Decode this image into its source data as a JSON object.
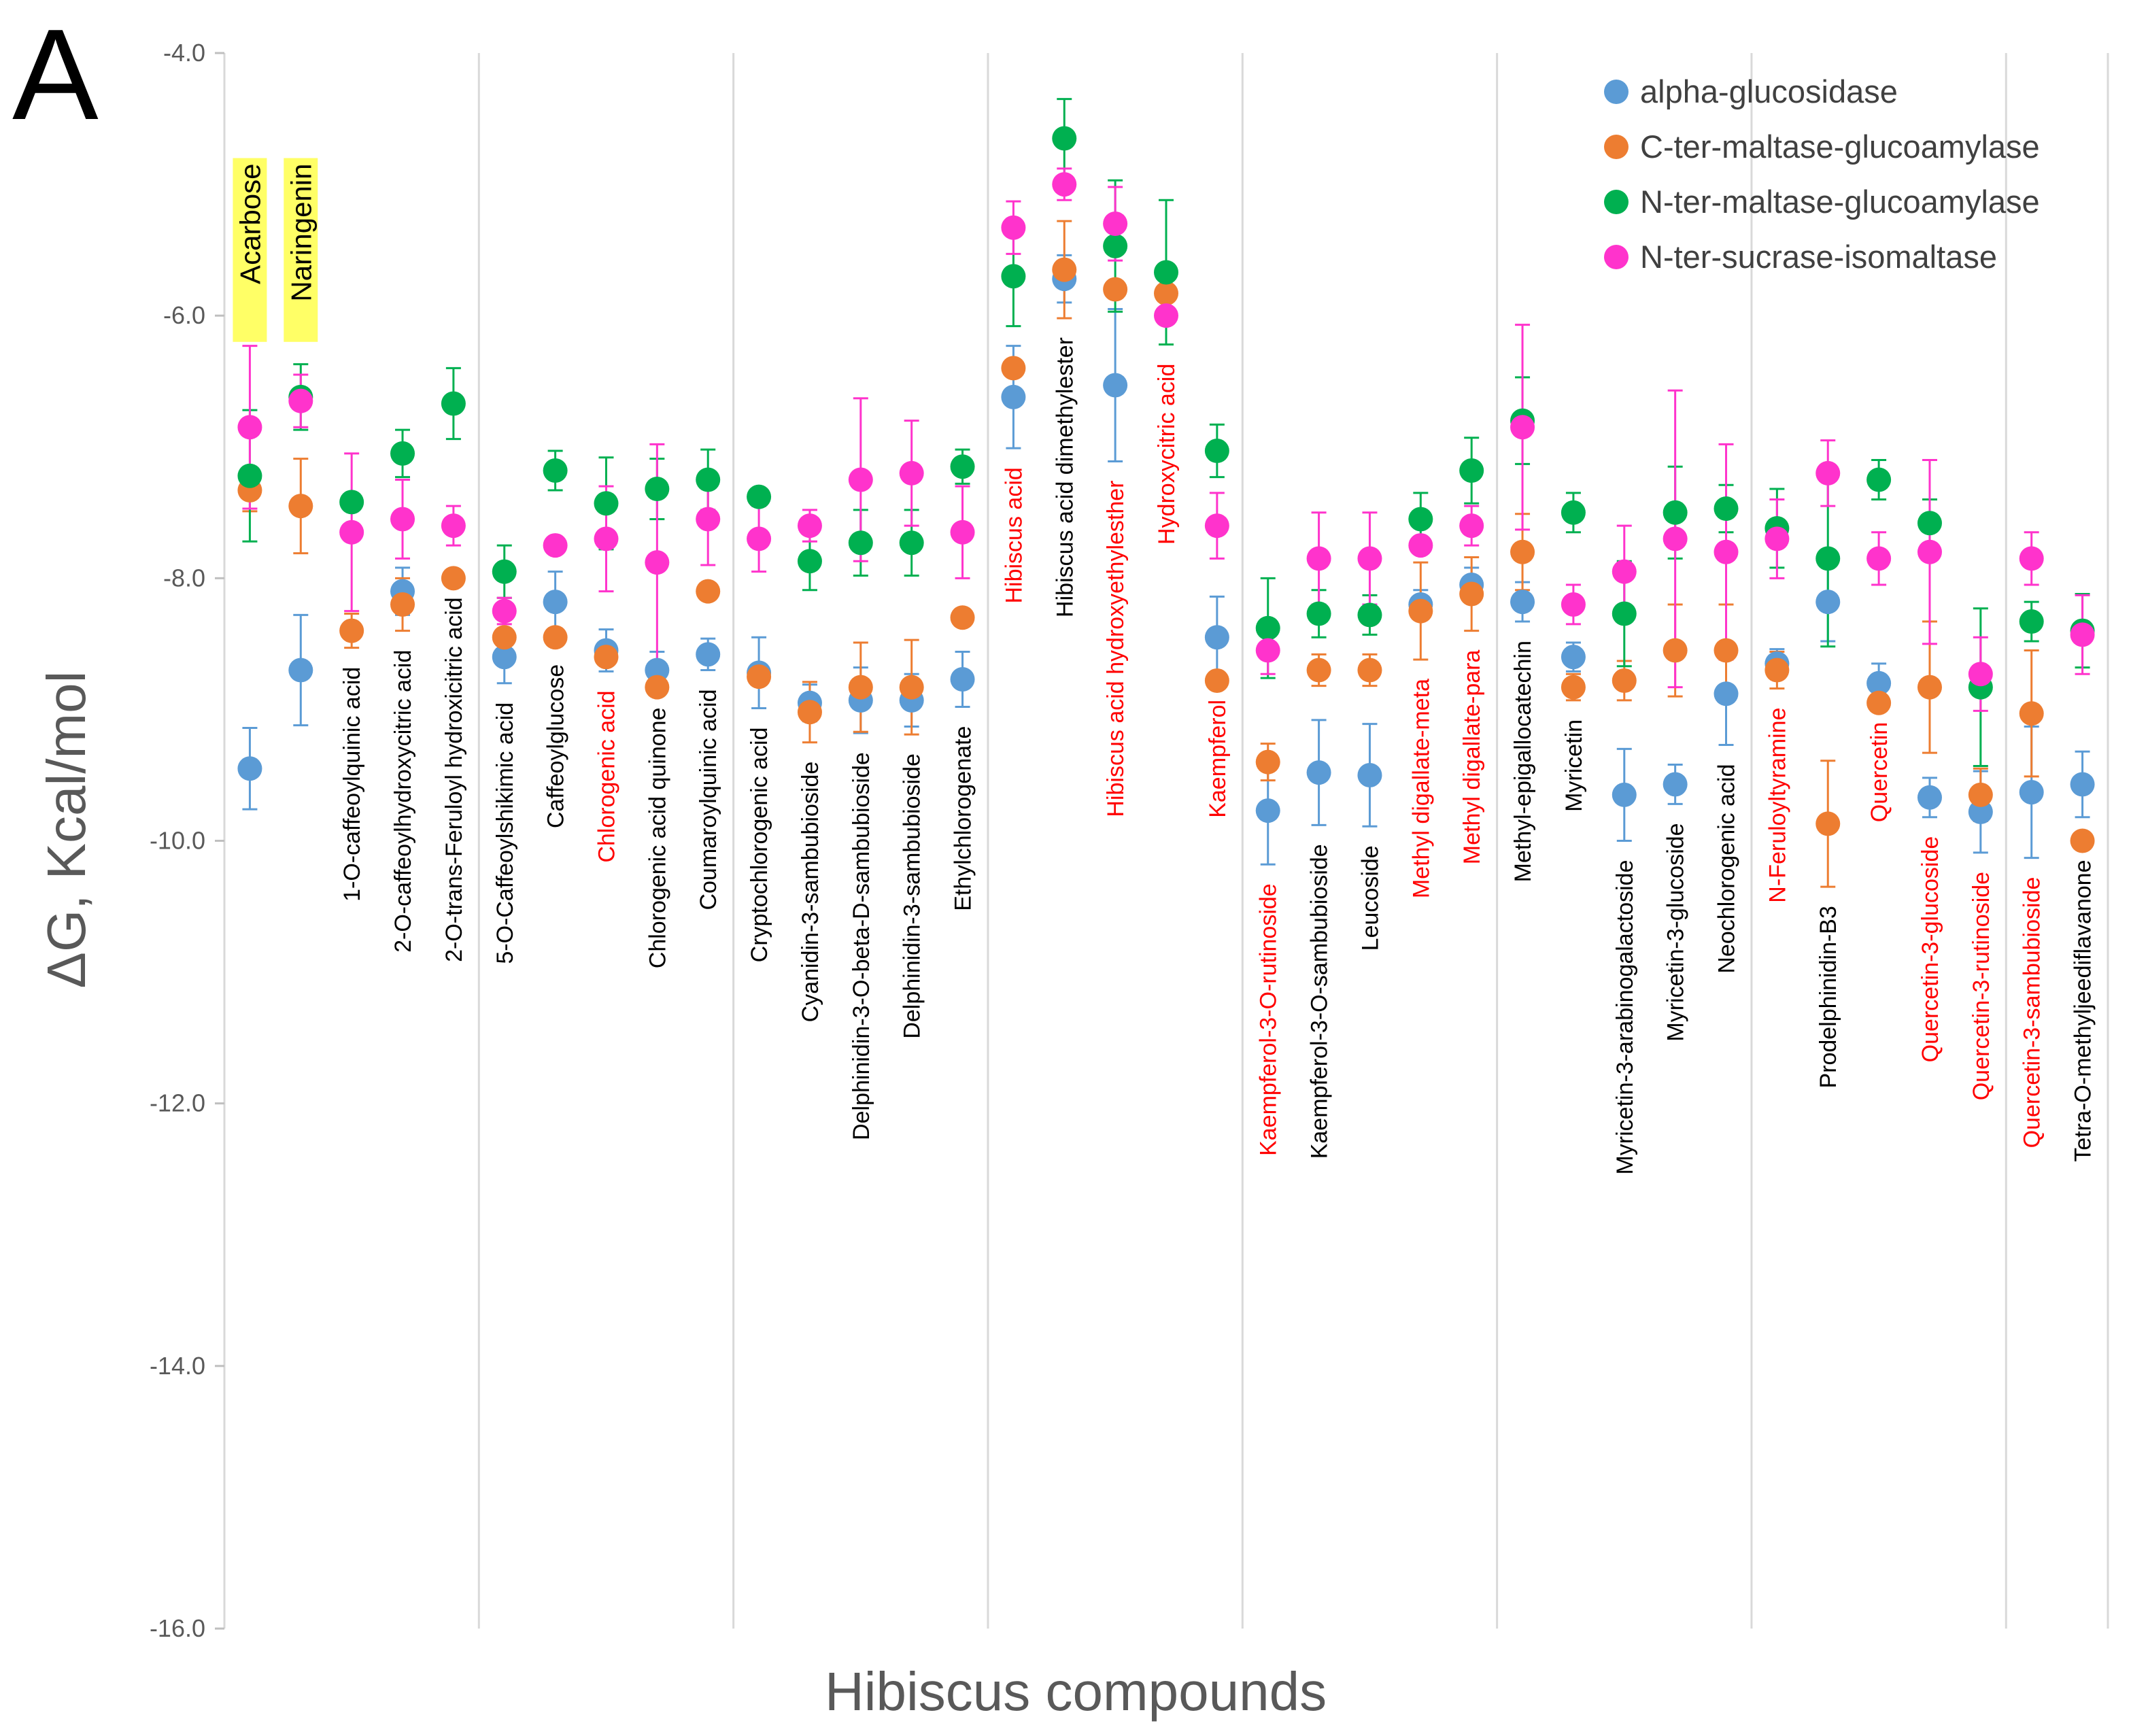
{
  "panel_label": "A",
  "chart_data": {
    "type": "scatter",
    "title": "",
    "xlabel": "Hibiscus compounds",
    "ylabel": "ΔG, Kcal/mol",
    "ylim": [
      -16,
      -4
    ],
    "yticks": [
      -4,
      -6,
      -8,
      -10,
      -12,
      -14,
      -16
    ],
    "ytick_labels": [
      "-4.0",
      "-6.0",
      "-8.0",
      "-10.0",
      "-12.0",
      "-14.0",
      "-16.0"
    ],
    "grid": "vertical lines every 5 categories",
    "legend_position": "top-right",
    "reference_labels": [
      "Acarbose",
      "Naringenin"
    ],
    "categories": [
      "Acarbose",
      "Naringenin",
      "1-O-caffeoylquinic acid",
      "2-O-caffeoylhydroxycitric acid",
      "2-O-trans-Feruloyl hydroxicitric acid",
      "5-O-Caffeoylshikimic acid",
      "Caffeoylglucose",
      "Chlorogenic acid",
      "Chlorogenic acid quinone",
      "Coumaroylquinic acid",
      "Cryptochlorogenic acid",
      "Cyanidin-3-sambubioside",
      "Delphinidin-3-O-beta-D-sambubioside",
      "Delphinidin-3-sambubioside",
      "Ethylchlorogenate",
      "Hibiscus acid",
      "Hibiscus acid dimethylester",
      "Hibiscus acid hydroxyethylesther",
      "Hydroxycitric acid",
      "Kaempferol",
      "Kaempferol-3-O-rutinoside",
      "Kaempferol-3-O-sambubioside",
      "Leucoside",
      "Methyl digallate-meta",
      "Methyl digallate-para",
      "Methyl-epigallocatechin",
      "Myricetin",
      "Myricetin-3-arabinogalactoside",
      "Myricetin-3-glucoside",
      "Neochlorogenic acid",
      "N-Feruloyltyramine",
      "Prodelphinidin-B3",
      "Quercetin",
      "Quercetin-3-glucoside",
      "Quercetin-3-rutinoside",
      "Quercetin-3-sambubioside",
      "Tetra-O-methyljeediflavanone"
    ],
    "label_colors": [
      "#000000",
      "#000000",
      "#000000",
      "#000000",
      "#000000",
      "#000000",
      "#000000",
      "#ff0000",
      "#000000",
      "#000000",
      "#000000",
      "#000000",
      "#000000",
      "#000000",
      "#000000",
      "#ff0000",
      "#000000",
      "#ff0000",
      "#ff0000",
      "#ff0000",
      "#ff0000",
      "#000000",
      "#000000",
      "#ff0000",
      "#ff0000",
      "#000000",
      "#000000",
      "#000000",
      "#000000",
      "#000000",
      "#ff0000",
      "#000000",
      "#ff0000",
      "#ff0000",
      "#ff0000",
      "#ff0000",
      "#000000"
    ],
    "series": [
      {
        "name": "alpha-glucosidase",
        "color": "#5b9bd5",
        "values": [
          -9.45,
          -8.7,
          null,
          -8.1,
          null,
          -8.6,
          -8.18,
          -8.55,
          -8.7,
          -8.58,
          -8.72,
          -8.95,
          -8.93,
          -8.93,
          -8.77,
          -6.62,
          -5.72,
          -6.53,
          null,
          -8.45,
          -9.77,
          -9.48,
          -9.5,
          -8.2,
          -8.05,
          -8.18,
          -8.6,
          -9.65,
          -9.57,
          -8.88,
          -8.65,
          -8.18,
          -8.8,
          -9.67,
          -9.78,
          -9.63,
          -9.57
        ],
        "errors": [
          0.31,
          0.42,
          0.0,
          0.18,
          0.0,
          0.2,
          0.23,
          0.16,
          0.14,
          0.12,
          0.27,
          0.14,
          0.25,
          0.2,
          0.21,
          0.39,
          0.18,
          0.58,
          0.0,
          0.31,
          0.41,
          0.4,
          0.39,
          0.11,
          0.13,
          0.15,
          0.11,
          0.35,
          0.15,
          0.39,
          0.11,
          0.3,
          0.15,
          0.15,
          0.31,
          0.5,
          0.25
        ]
      },
      {
        "name": "C-ter-maltase-glucoamylase",
        "color": "#ed7d31",
        "values": [
          -7.33,
          -7.45,
          -8.4,
          -8.2,
          -8.0,
          -8.45,
          -8.45,
          -8.6,
          -8.83,
          -8.1,
          -8.75,
          -9.02,
          -8.83,
          -8.83,
          -8.3,
          -6.4,
          -5.65,
          -5.8,
          -5.83,
          -8.78,
          -9.4,
          -8.7,
          -8.7,
          -8.25,
          -8.12,
          -7.8,
          -8.83,
          -8.78,
          -8.55,
          -8.55,
          -8.7,
          -9.87,
          -8.95,
          -8.83,
          -9.65,
          -9.03,
          -10.0
        ],
        "errors": [
          0.16,
          0.36,
          0.13,
          0.2,
          0.0,
          0.0,
          0.06,
          0.0,
          0.0,
          0.0,
          0.0,
          0.23,
          0.34,
          0.36,
          0.0,
          0.0,
          0.37,
          0.0,
          0.0,
          0.0,
          0.14,
          0.12,
          0.12,
          0.37,
          0.28,
          0.29,
          0.1,
          0.15,
          0.35,
          0.35,
          0.14,
          0.48,
          0.0,
          0.5,
          0.2,
          0.48,
          0.0
        ]
      },
      {
        "name": "N-ter-maltase-glucoamylase",
        "color": "#00b050",
        "values": [
          -7.22,
          -6.62,
          -7.42,
          -7.05,
          -6.67,
          -7.95,
          -7.18,
          -7.43,
          -7.32,
          -7.25,
          -7.38,
          -7.87,
          -7.73,
          -7.73,
          -7.15,
          -5.7,
          -4.65,
          -5.47,
          -5.67,
          -7.03,
          -8.38,
          -8.27,
          -8.28,
          -7.55,
          -7.18,
          -6.8,
          -7.5,
          -8.27,
          -7.5,
          -7.47,
          -7.62,
          -7.85,
          -7.25,
          -7.58,
          -8.83,
          -8.33,
          -8.4
        ],
        "errors": [
          0.5,
          0.25,
          0.0,
          0.18,
          0.27,
          0.2,
          0.15,
          0.35,
          0.23,
          0.23,
          0.0,
          0.22,
          0.25,
          0.25,
          0.13,
          0.38,
          0.3,
          0.5,
          0.55,
          0.2,
          0.38,
          0.18,
          0.15,
          0.2,
          0.25,
          0.33,
          0.15,
          0.4,
          0.35,
          0.18,
          0.3,
          0.67,
          0.15,
          0.18,
          0.6,
          0.15,
          0.28
        ]
      },
      {
        "name": "N-ter-sucrase-isomaltase",
        "color": "#ff33cc",
        "values": [
          -6.85,
          -6.65,
          -7.65,
          -7.55,
          -7.6,
          -8.25,
          -7.75,
          -7.7,
          -7.88,
          -7.55,
          -7.7,
          -7.6,
          -7.25,
          -7.2,
          -7.65,
          -5.33,
          -5.0,
          -5.3,
          -6.0,
          -7.6,
          -8.55,
          -7.85,
          -7.85,
          -7.75,
          -7.6,
          -6.85,
          -8.2,
          -7.95,
          -7.7,
          -7.8,
          -7.7,
          -7.2,
          -7.85,
          -7.8,
          -8.73,
          -7.85,
          -8.43
        ],
        "errors": [
          0.62,
          0.2,
          0.6,
          0.3,
          0.15,
          0.1,
          0.0,
          0.4,
          0.9,
          0.35,
          0.25,
          0.12,
          0.62,
          0.4,
          0.35,
          0.2,
          0.12,
          0.28,
          0.0,
          0.25,
          0.18,
          0.35,
          0.35,
          0.0,
          0.15,
          0.78,
          0.15,
          0.35,
          1.13,
          0.82,
          0.3,
          0.25,
          0.2,
          0.7,
          0.28,
          0.2,
          0.3
        ]
      }
    ]
  }
}
